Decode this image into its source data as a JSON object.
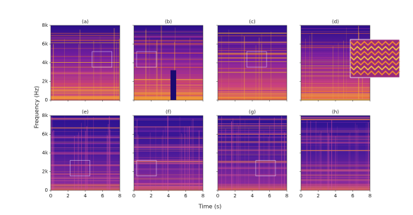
{
  "chart_data": {
    "type": "spectrogram",
    "x_label": "Time (s)",
    "y_label": "Frequency (Hz)",
    "xlim": [
      0,
      8
    ],
    "xticks": [
      0,
      2,
      4,
      6,
      8
    ],
    "ylim": [
      0,
      8000
    ],
    "yticks": [
      0,
      {
        "value": 2000,
        "label": "2k"
      },
      {
        "value": 4000,
        "label": "4k"
      },
      {
        "value": 6000,
        "label": "6k"
      },
      {
        "value": 8000,
        "label": "8k"
      }
    ],
    "panels": [
      {
        "title": "(a)"
      },
      {
        "title": "(b)"
      },
      {
        "title": "(c)"
      },
      {
        "title": "(d)"
      },
      {
        "title": "(e)"
      },
      {
        "title": "(f)"
      },
      {
        "title": "(g)"
      },
      {
        "title": "(h)"
      }
    ]
  }
}
